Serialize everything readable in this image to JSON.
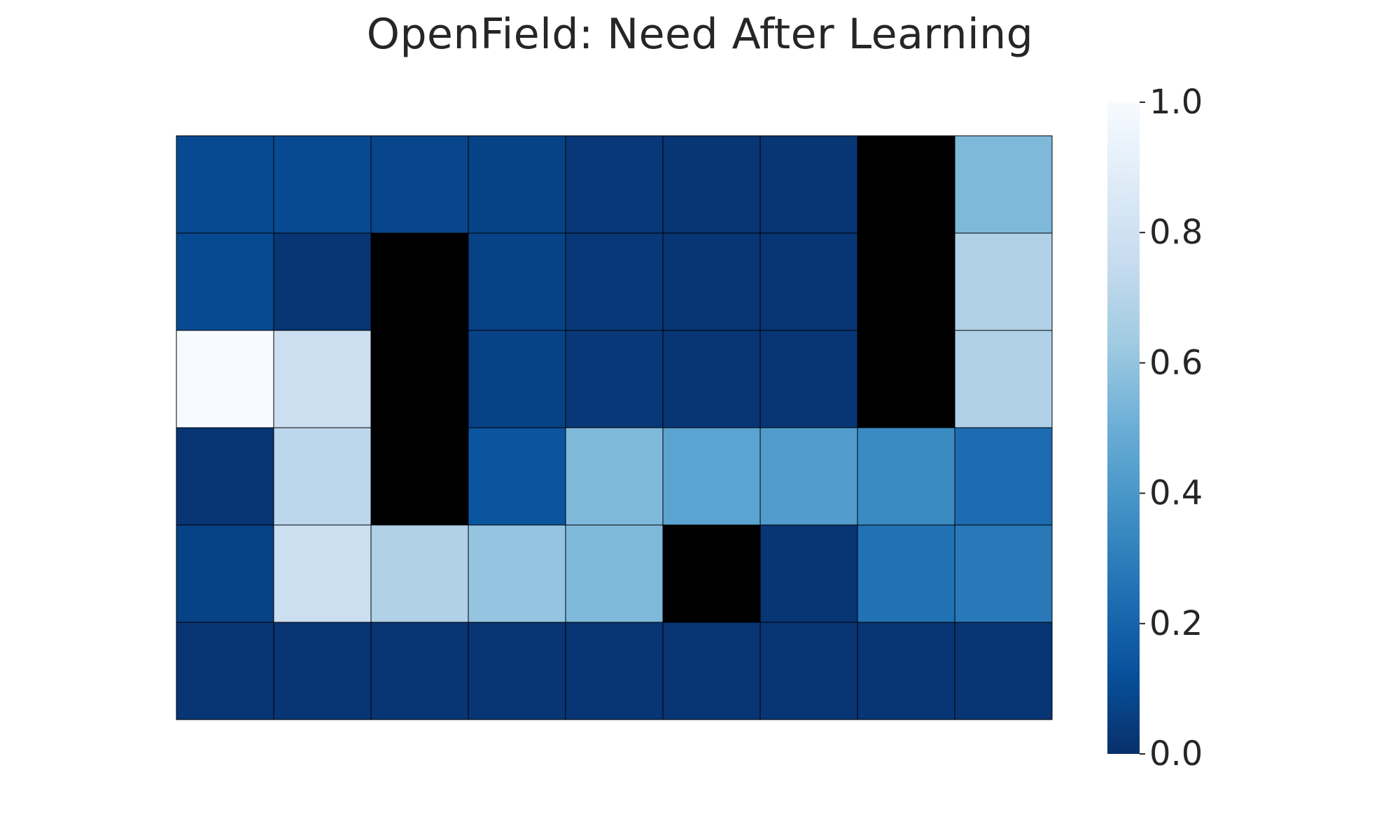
{
  "chart_data": {
    "type": "heatmap",
    "title": "OpenField: Need After Learning",
    "rows": 6,
    "cols": 9,
    "values": [
      [
        0.1,
        0.1,
        0.08,
        0.07,
        0.03,
        0.02,
        0.02,
        null,
        0.55
      ],
      [
        0.1,
        0.02,
        null,
        0.07,
        0.03,
        0.02,
        0.02,
        null,
        0.68
      ],
      [
        1.0,
        0.78,
        null,
        0.07,
        0.03,
        0.02,
        0.02,
        null,
        0.68
      ],
      [
        0.02,
        0.72,
        null,
        0.14,
        0.55,
        0.45,
        0.42,
        0.35,
        0.23
      ],
      [
        0.07,
        0.78,
        0.68,
        0.6,
        0.55,
        null,
        0.02,
        0.25,
        0.28
      ],
      [
        0.02,
        0.02,
        0.02,
        0.02,
        0.02,
        0.02,
        0.02,
        0.02,
        0.02
      ]
    ],
    "masked_color": "#000000",
    "colormap": "Blues_r",
    "colorbar": {
      "range": [
        0.0,
        1.0
      ],
      "ticks": [
        {
          "value": 0.0,
          "label": "0.0"
        },
        {
          "value": 0.2,
          "label": "0.2"
        },
        {
          "value": 0.4,
          "label": "0.4"
        },
        {
          "value": 0.6,
          "label": "0.6"
        },
        {
          "value": 0.8,
          "label": "0.8"
        },
        {
          "value": 1.0,
          "label": "1.0"
        }
      ]
    },
    "grid": true,
    "xlabel": "",
    "ylabel": ""
  }
}
